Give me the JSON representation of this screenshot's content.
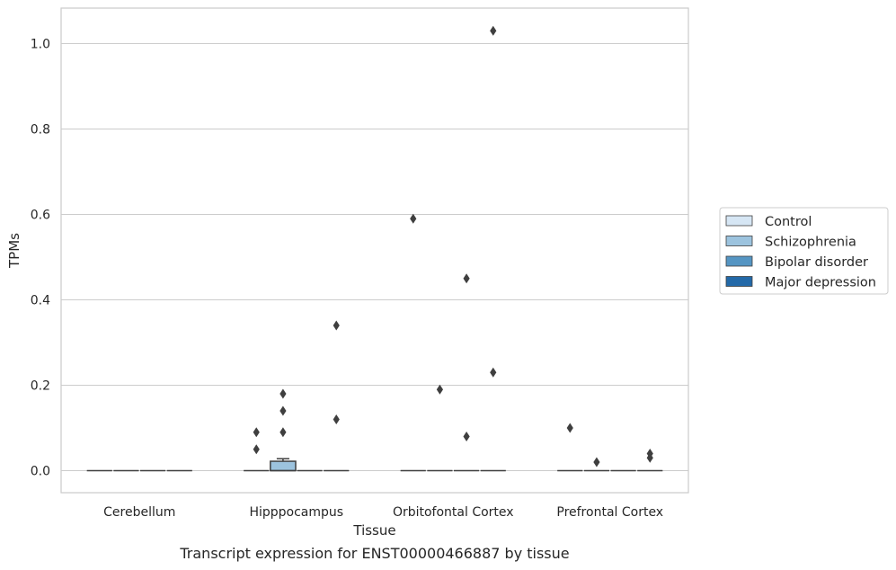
{
  "chart_data": {
    "type": "box",
    "title": "Transcript expression for ENST00000466887 by tissue",
    "xlabel": "Tissue",
    "ylabel": "TPMs",
    "ylim": [
      -0.05,
      1.08
    ],
    "yticks": [
      0.0,
      0.2,
      0.4,
      0.6,
      0.8,
      1.0
    ],
    "ytick_labels": [
      "0.0",
      "0.2",
      "0.4",
      "0.6",
      "0.8",
      "1.0"
    ],
    "categories": [
      "Cerebellum",
      "Hipppocampus",
      "Orbitofontal Cortex",
      "Prefrontal Cortex"
    ],
    "grid": "horizontal",
    "legend_position": "right",
    "series": [
      {
        "name": "Control",
        "color": "#d6e6f4",
        "boxes": [
          {
            "q1": 0.0,
            "median": 0.0,
            "q3": 0.0,
            "whisker_low": 0.0,
            "whisker_high": 0.0,
            "outliers": []
          },
          {
            "q1": 0.0,
            "median": 0.0,
            "q3": 0.0,
            "whisker_low": 0.0,
            "whisker_high": 0.0,
            "outliers": [
              0.05,
              0.09
            ]
          },
          {
            "q1": 0.0,
            "median": 0.0,
            "q3": 0.0,
            "whisker_low": 0.0,
            "whisker_high": 0.0,
            "outliers": [
              0.59
            ]
          },
          {
            "q1": 0.0,
            "median": 0.0,
            "q3": 0.0,
            "whisker_low": 0.0,
            "whisker_high": 0.0,
            "outliers": [
              0.1
            ]
          }
        ]
      },
      {
        "name": "Schizophrenia",
        "color": "#9cc3de",
        "boxes": [
          {
            "q1": 0.0,
            "median": 0.0,
            "q3": 0.0,
            "whisker_low": 0.0,
            "whisker_high": 0.0,
            "outliers": []
          },
          {
            "q1": 0.0,
            "median": 0.0,
            "q3": 0.022,
            "whisker_low": 0.0,
            "whisker_high": 0.028,
            "outliers": [
              0.09,
              0.14,
              0.18
            ]
          },
          {
            "q1": 0.0,
            "median": 0.0,
            "q3": 0.0,
            "whisker_low": 0.0,
            "whisker_high": 0.0,
            "outliers": [
              0.19
            ]
          },
          {
            "q1": 0.0,
            "median": 0.0,
            "q3": 0.0,
            "whisker_low": 0.0,
            "whisker_high": 0.0,
            "outliers": [
              0.02
            ]
          }
        ]
      },
      {
        "name": "Bipolar disorder",
        "color": "#5595c3",
        "boxes": [
          {
            "q1": 0.0,
            "median": 0.0,
            "q3": 0.0,
            "whisker_low": 0.0,
            "whisker_high": 0.0,
            "outliers": []
          },
          {
            "q1": 0.0,
            "median": 0.0,
            "q3": 0.0,
            "whisker_low": 0.0,
            "whisker_high": 0.0,
            "outliers": []
          },
          {
            "q1": 0.0,
            "median": 0.0,
            "q3": 0.0,
            "whisker_low": 0.0,
            "whisker_high": 0.0,
            "outliers": [
              0.08,
              0.45
            ]
          },
          {
            "q1": 0.0,
            "median": 0.0,
            "q3": 0.0,
            "whisker_low": 0.0,
            "whisker_high": 0.0,
            "outliers": []
          }
        ]
      },
      {
        "name": "Major depression",
        "color": "#2369a8",
        "boxes": [
          {
            "q1": 0.0,
            "median": 0.0,
            "q3": 0.0,
            "whisker_low": 0.0,
            "whisker_high": 0.0,
            "outliers": []
          },
          {
            "q1": 0.0,
            "median": 0.0,
            "q3": 0.0,
            "whisker_low": 0.0,
            "whisker_high": 0.0,
            "outliers": [
              0.12,
              0.34
            ]
          },
          {
            "q1": 0.0,
            "median": 0.0,
            "q3": 0.0,
            "whisker_low": 0.0,
            "whisker_high": 0.0,
            "outliers": [
              0.23,
              1.03
            ]
          },
          {
            "q1": 0.0,
            "median": 0.0,
            "q3": 0.0,
            "whisker_low": 0.0,
            "whisker_high": 0.0,
            "outliers": [
              0.03,
              0.04
            ]
          }
        ]
      }
    ]
  }
}
